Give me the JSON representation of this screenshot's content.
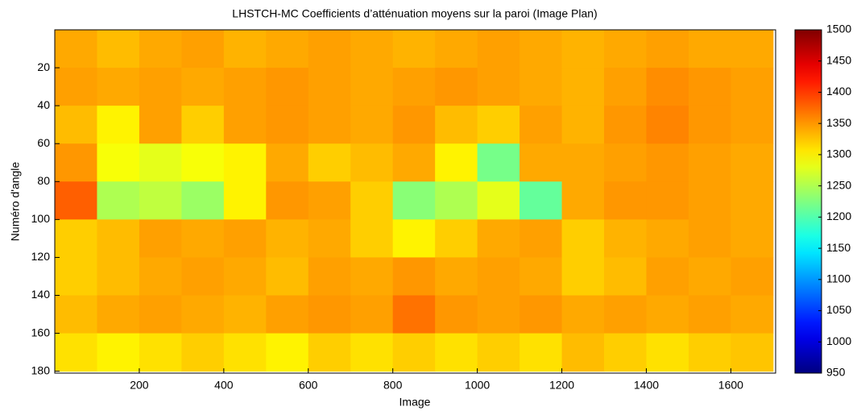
{
  "chart_data": {
    "type": "heatmap",
    "title": "LHSTCH-MC Coefficients d’atténuation moyens sur la paroi (Image Plan)",
    "xlabel": "Image",
    "ylabel": "Numéro d'angle",
    "xlim": [
      0,
      1706
    ],
    "ylim": [
      181,
      0
    ],
    "y_reversed": true,
    "xticks": [
      200,
      400,
      600,
      800,
      1000,
      1200,
      1400,
      1600
    ],
    "yticks": [
      20,
      40,
      60,
      80,
      100,
      120,
      140,
      160,
      180
    ],
    "clim": [
      950,
      1500
    ],
    "colormap": "jet",
    "colorbar_ticks": [
      950,
      1000,
      1050,
      1100,
      1150,
      1200,
      1250,
      1300,
      1350,
      1400,
      1450,
      1500
    ],
    "x": [
      50,
      150,
      250,
      350,
      450,
      550,
      650,
      750,
      850,
      950,
      1050,
      1150,
      1250,
      1350,
      1450,
      1550,
      1650
    ],
    "y": [
      10,
      30,
      50,
      70,
      90,
      110,
      130,
      150,
      170
    ],
    "z": [
      [
        1340,
        1330,
        1340,
        1345,
        1335,
        1340,
        1345,
        1340,
        1335,
        1340,
        1345,
        1340,
        1335,
        1340,
        1345,
        1340,
        1340
      ],
      [
        1345,
        1340,
        1345,
        1340,
        1345,
        1350,
        1345,
        1340,
        1345,
        1350,
        1345,
        1340,
        1335,
        1345,
        1355,
        1350,
        1345
      ],
      [
        1330,
        1300,
        1345,
        1320,
        1345,
        1350,
        1345,
        1340,
        1350,
        1330,
        1320,
        1345,
        1335,
        1350,
        1360,
        1350,
        1345
      ],
      [
        1350,
        1290,
        1280,
        1290,
        1300,
        1340,
        1320,
        1330,
        1340,
        1300,
        1220,
        1340,
        1340,
        1345,
        1350,
        1345,
        1340
      ],
      [
        1380,
        1250,
        1260,
        1240,
        1300,
        1350,
        1345,
        1320,
        1230,
        1250,
        1280,
        1210,
        1340,
        1350,
        1350,
        1345,
        1340
      ],
      [
        1320,
        1330,
        1345,
        1340,
        1345,
        1335,
        1340,
        1320,
        1300,
        1320,
        1340,
        1345,
        1320,
        1335,
        1340,
        1345,
        1340
      ],
      [
        1320,
        1330,
        1340,
        1345,
        1340,
        1330,
        1345,
        1340,
        1350,
        1340,
        1345,
        1340,
        1320,
        1330,
        1345,
        1340,
        1345
      ],
      [
        1330,
        1340,
        1345,
        1340,
        1335,
        1345,
        1350,
        1345,
        1370,
        1350,
        1345,
        1350,
        1340,
        1345,
        1340,
        1345,
        1340
      ],
      [
        1310,
        1300,
        1310,
        1320,
        1310,
        1300,
        1320,
        1310,
        1320,
        1310,
        1320,
        1310,
        1330,
        1320,
        1310,
        1320,
        1325
      ]
    ]
  }
}
